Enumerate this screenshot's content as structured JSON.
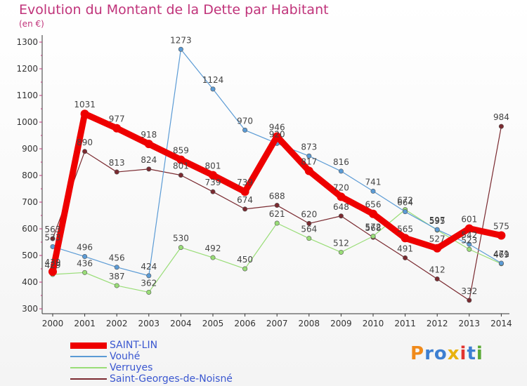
{
  "title": "Evolution du Montant de la Dette par Habitant",
  "unit_label": "(en €)",
  "logo_text": "Proxiti",
  "chart_data": {
    "type": "line",
    "title": "Evolution du Montant de la Dette par Habitant",
    "subtitle": "(en €)",
    "x": [
      "2000",
      "2001",
      "2002",
      "2003",
      "2004",
      "2005",
      "2006",
      "2007",
      "2008",
      "2009",
      "2010",
      "2011",
      "2012",
      "2013",
      "2014"
    ],
    "ylim": [
      300,
      1300
    ],
    "yticks": [
      300,
      400,
      500,
      600,
      700,
      800,
      900,
      1000,
      1100,
      1200,
      1300
    ],
    "grid": false,
    "legend_position": "bottom-left",
    "series": [
      {
        "name": "SAINT-LIN",
        "color": "#ee0000",
        "values": [
          439,
          1031,
          977,
          918,
          859,
          801,
          739,
          946,
          817,
          720,
          656,
          565,
          527,
          601,
          575
        ]
      },
      {
        "name": "Vouhé",
        "color": "#5b9bd5",
        "values": [
          533,
          496,
          456,
          424,
          1273,
          1124,
          970,
          920,
          873,
          816,
          741,
          664,
          597,
          542,
          471
        ]
      },
      {
        "name": "Verruyes",
        "color": "#99dd77",
        "values": [
          429,
          436,
          387,
          362,
          530,
          492,
          450,
          621,
          564,
          512,
          572,
          672,
          595,
          523,
          469
        ]
      },
      {
        "name": "Saint-Georges-de-Noisné",
        "color": "#7a2a30",
        "values": [
          563,
          890,
          813,
          824,
          801,
          739,
          674,
          688,
          620,
          648,
          568,
          491,
          412,
          332,
          984
        ]
      }
    ]
  }
}
